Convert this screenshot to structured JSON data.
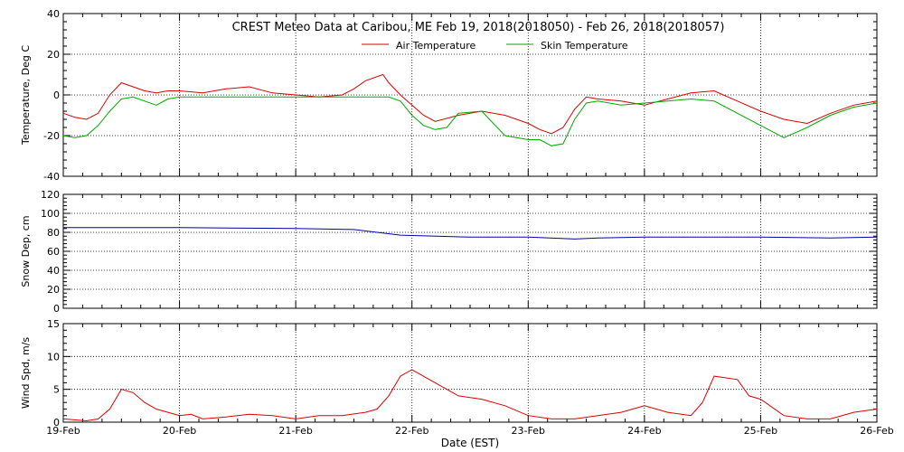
{
  "chart_data": {
    "type": "line",
    "title": "CREST Meteo Data at Caribou, ME   Feb 19, 2018(2018050) - Feb 26, 2018(2018057)",
    "xlabel": "Date (EST)",
    "x_ticks": [
      "19-Feb",
      "20-Feb",
      "21-Feb",
      "22-Feb",
      "23-Feb",
      "24-Feb",
      "25-Feb",
      "26-Feb"
    ],
    "x_range_days": [
      0,
      7
    ],
    "grid": true,
    "panels": [
      {
        "id": "temperature",
        "ylabel": "Temperature, Deg C",
        "ylim": [
          -40,
          40
        ],
        "yticks": [
          -40,
          -20,
          0,
          20,
          40
        ],
        "legend": "top-center",
        "series": [
          {
            "name": "Air Temperature",
            "color": "#dd0000",
            "x": [
              0,
              0.1,
              0.2,
              0.3,
              0.4,
              0.5,
              0.6,
              0.7,
              0.8,
              0.9,
              1.0,
              1.2,
              1.4,
              1.6,
              1.8,
              2.0,
              2.2,
              2.4,
              2.5,
              2.6,
              2.75,
              2.8,
              2.9,
              3.0,
              3.1,
              3.2,
              3.4,
              3.6,
              3.8,
              4.0,
              4.1,
              4.2,
              4.3,
              4.4,
              4.5,
              4.6,
              4.8,
              5.0,
              5.2,
              5.4,
              5.6,
              5.8,
              6.0,
              6.2,
              6.4,
              6.6,
              6.8,
              7.0
            ],
            "y": [
              -9,
              -11,
              -12,
              -9,
              0,
              6,
              4,
              2,
              1,
              2,
              2,
              1,
              3,
              4,
              1,
              0,
              -1,
              0,
              3,
              7,
              10,
              6,
              0,
              -5,
              -10,
              -13,
              -10,
              -8,
              -10,
              -14,
              -17,
              -19,
              -16,
              -7,
              -1,
              -2,
              -3,
              -5,
              -2,
              1,
              2,
              -3,
              -8,
              -12,
              -14,
              -9,
              -5,
              -3
            ]
          },
          {
            "name": "Skin Temperature",
            "color": "#00aa00",
            "x": [
              0,
              0.1,
              0.2,
              0.3,
              0.4,
              0.5,
              0.6,
              0.7,
              0.8,
              0.9,
              1.0,
              1.2,
              1.4,
              1.6,
              1.8,
              2.0,
              2.2,
              2.4,
              2.6,
              2.8,
              2.9,
              3.0,
              3.1,
              3.2,
              3.3,
              3.4,
              3.6,
              3.8,
              4.0,
              4.1,
              4.2,
              4.3,
              4.4,
              4.5,
              4.6,
              4.8,
              5.0,
              5.2,
              5.4,
              5.6,
              5.8,
              6.0,
              6.2,
              6.4,
              6.6,
              6.8,
              7.0
            ],
            "y": [
              -20,
              -21,
              -20,
              -15,
              -8,
              -2,
              -1,
              -3,
              -5,
              -2,
              -1,
              -1,
              -1,
              -1,
              -1,
              -1,
              -1,
              -1,
              -1,
              -1,
              -3,
              -10,
              -15,
              -17,
              -16,
              -9,
              -8,
              -20,
              -22,
              -22,
              -25,
              -24,
              -12,
              -4,
              -3,
              -5,
              -4,
              -3,
              -2,
              -3,
              -9,
              -15,
              -21,
              -16,
              -10,
              -6,
              -4
            ]
          }
        ]
      },
      {
        "id": "snow",
        "ylabel": "Snow Dep, cm",
        "ylim": [
          0,
          120
        ],
        "yticks": [
          0,
          20,
          40,
          60,
          80,
          100,
          120
        ],
        "series": [
          {
            "color": "#0000aa",
            "x": [
              0,
              1.0,
              2.0,
              2.5,
              2.9,
              3.5,
              4.0,
              4.4,
              4.6,
              5.0,
              6.0,
              6.6,
              7.0
            ],
            "y": [
              85,
              85,
              84,
              83,
              77,
              75,
              75,
              73,
              74,
              75,
              75,
              74,
              75
            ]
          }
        ]
      },
      {
        "id": "wind",
        "ylabel": "Wind Spd, m/s",
        "ylim": [
          0,
          15
        ],
        "yticks": [
          0,
          5,
          10,
          15
        ],
        "series": [
          {
            "color": "#dd0000",
            "x": [
              0,
              0.2,
              0.3,
              0.4,
              0.5,
              0.6,
              0.7,
              0.8,
              0.9,
              1.0,
              1.1,
              1.2,
              1.4,
              1.6,
              1.8,
              2.0,
              2.2,
              2.4,
              2.6,
              2.7,
              2.8,
              2.9,
              3.0,
              3.2,
              3.4,
              3.6,
              3.8,
              4.0,
              4.2,
              4.4,
              4.6,
              4.8,
              5.0,
              5.2,
              5.4,
              5.5,
              5.6,
              5.8,
              5.9,
              6.0,
              6.2,
              6.4,
              6.6,
              6.8,
              7.0
            ],
            "y": [
              0.5,
              0.2,
              0.5,
              2,
              5,
              4.5,
              3,
              2,
              1.5,
              1,
              1.2,
              0.5,
              0.8,
              1.2,
              1,
              0.5,
              1,
              1,
              1.5,
              2,
              4,
              7,
              8,
              6,
              4,
              3.5,
              2.5,
              1,
              0.5,
              0.5,
              1,
              1.5,
              2.5,
              1.5,
              1,
              3,
              7,
              6.5,
              4,
              3.5,
              1,
              0.5,
              0.5,
              1.5,
              2
            ]
          }
        ]
      }
    ]
  }
}
